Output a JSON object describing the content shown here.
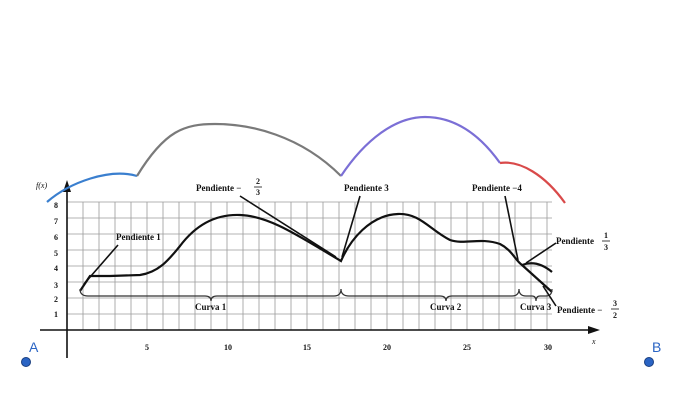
{
  "graph": {
    "y_axis_label": "f(x)",
    "x_axis_label": "x",
    "x_ticks": [
      "5",
      "10",
      "15",
      "20",
      "25",
      "30"
    ],
    "y_ticks": [
      "1",
      "2",
      "3",
      "4",
      "5",
      "6",
      "7",
      "8"
    ]
  },
  "annotations": {
    "pendiente_1": "Pendiente 1",
    "pendiente_neg_2_3": {
      "text": "Pendiente −",
      "num": "2",
      "den": "3"
    },
    "pendiente_3": "Pendiente 3",
    "pendiente_neg_4": "Pendiente −4",
    "pendiente_1_3": {
      "text": "Pendiente",
      "num": "1",
      "den": "3"
    },
    "pendiente_neg_3_2": {
      "text": "Pendiente −",
      "num": "3",
      "den": "2"
    }
  },
  "curve_labels": {
    "curva1": "Curva 1",
    "curva2": "Curva 2",
    "curva3": "Curva 3"
  },
  "points": {
    "a": "A",
    "b": "B"
  },
  "overlay_arc_colors": [
    "#3a7fcf",
    "#7a7a7a",
    "#7b6fd6",
    "#d94a4a"
  ]
}
